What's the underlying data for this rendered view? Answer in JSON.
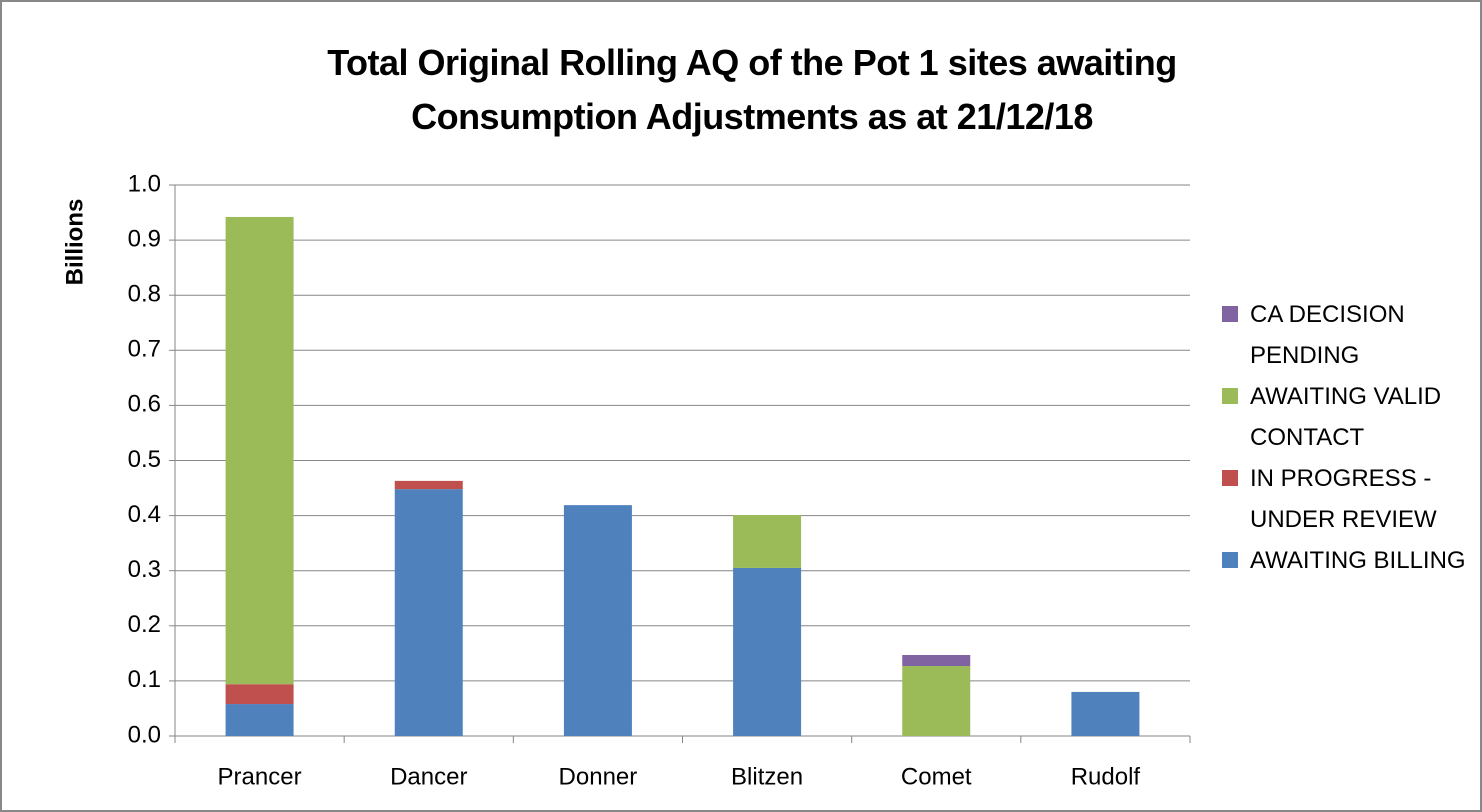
{
  "chart_data": {
    "type": "stacked_bar",
    "title": "Total Original Rolling AQ of the Pot 1 sites awaiting Consumption Adjustments as at 21/12/18",
    "y_label": "Billions",
    "categories": [
      "Prancer",
      "Dancer",
      "Donner",
      "Blitzen",
      "Comet",
      "Rudolf"
    ],
    "series": [
      {
        "name": "AWAITING BILLING",
        "color": "#4f81bd",
        "values": [
          0.058,
          0.448,
          0.419,
          0.305,
          0,
          0.08
        ]
      },
      {
        "name": "IN PROGRESS - UNDER REVIEW",
        "color": "#c0504d",
        "values": [
          0.036,
          0.015,
          0,
          0,
          0,
          0
        ]
      },
      {
        "name": "AWAITING VALID CONTACT",
        "color": "#9bbb59",
        "values": [
          0.848,
          0,
          0,
          0.096,
          0.127,
          0
        ]
      },
      {
        "name": "CA DECISION PENDING",
        "color": "#8064a2",
        "values": [
          0,
          0,
          0,
          0,
          0.02,
          0
        ]
      }
    ],
    "ylim": [
      0,
      1
    ],
    "yticks": [
      {
        "value": 0,
        "label": "0.0"
      },
      0.1,
      0.2,
      0.3,
      0.4,
      0.5,
      0.6,
      0.7,
      0.8,
      0.9,
      {
        "value": 1,
        "label": "1.0"
      }
    ],
    "grid": true,
    "legend": "right"
  }
}
